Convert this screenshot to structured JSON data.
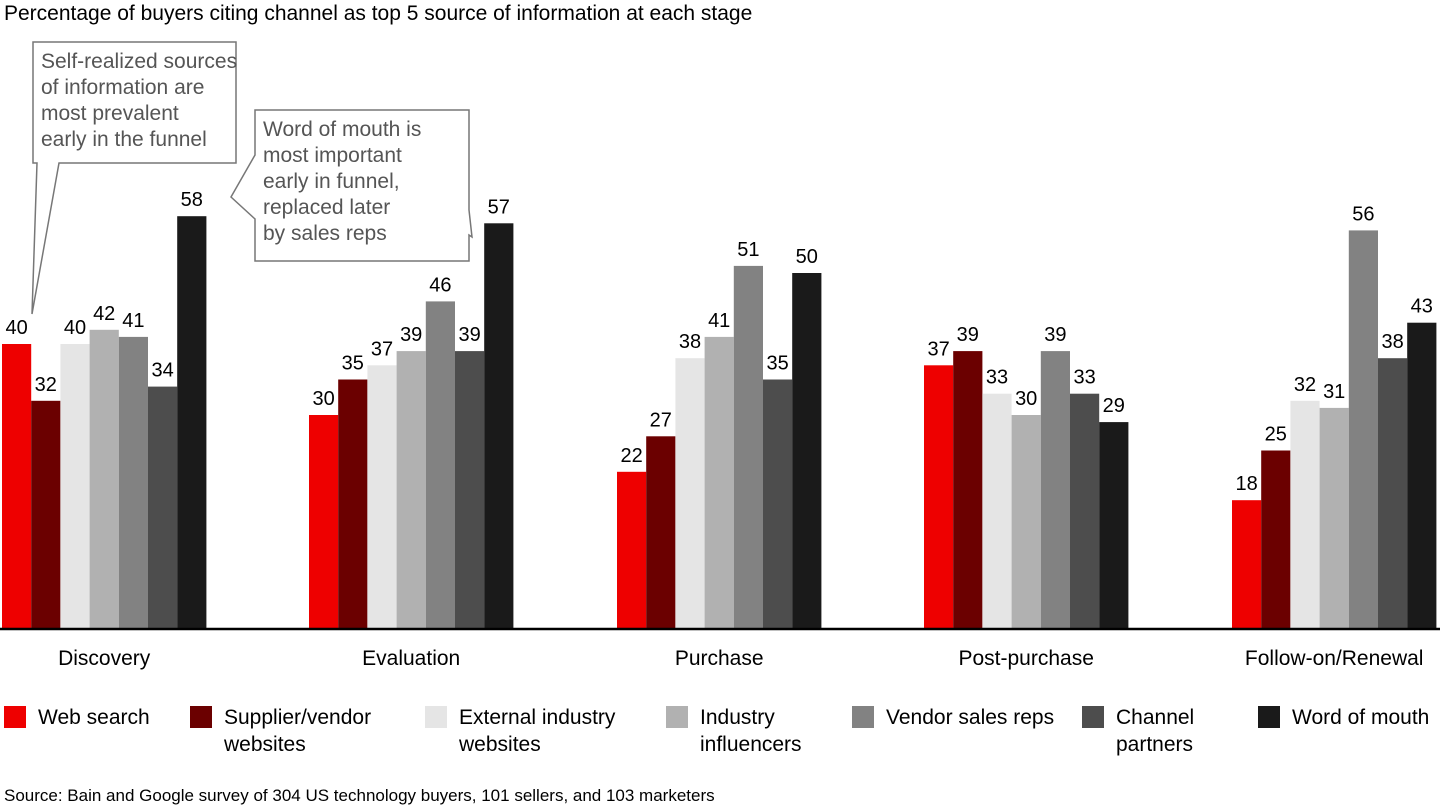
{
  "title": "Percentage of buyers citing channel as top 5 source of information at each stage",
  "source": "Source: Bain and Google survey of 304 US technology buyers, 101 sellers, and 103 marketers",
  "chart_data": {
    "type": "bar",
    "categories": [
      "Discovery",
      "Evaluation",
      "Purchase",
      "Post-purchase",
      "Follow-on/Renewal"
    ],
    "series": [
      {
        "name": "Web search",
        "legend": "Web search",
        "color": "#ee0000",
        "values": [
          40,
          30,
          22,
          37,
          18
        ]
      },
      {
        "name": "Supplier/vendor websites",
        "legend": "Supplier/vendor\nwebsites",
        "color": "#6b0000",
        "values": [
          32,
          35,
          27,
          39,
          25
        ]
      },
      {
        "name": "External industry websites",
        "legend": "External industry\nwebsites",
        "color": "#e5e5e5",
        "values": [
          40,
          37,
          38,
          33,
          32
        ]
      },
      {
        "name": "Industry influencers",
        "legend": "Industry\ninfluencers",
        "color": "#b1b1b1",
        "values": [
          42,
          39,
          41,
          30,
          31
        ]
      },
      {
        "name": "Vendor sales reps",
        "legend": "Vendor sales reps",
        "color": "#828282",
        "values": [
          41,
          46,
          51,
          39,
          56
        ]
      },
      {
        "name": "Channel partners",
        "legend": "Channel\npartners",
        "color": "#4d4d4d",
        "values": [
          34,
          39,
          35,
          33,
          38
        ]
      },
      {
        "name": "Word of mouth",
        "legend": "Word of mouth",
        "color": "#1a1a1a",
        "values": [
          58,
          57,
          50,
          29,
          43
        ]
      }
    ],
    "ylim": [
      0,
      60
    ],
    "annotations": [
      "Self-realized sources\nof information are\nmost prevalent\nearly in the funnel",
      "Word of mouth is\nmost important\nearly in funnel,\nreplaced later\nby sales reps"
    ]
  }
}
